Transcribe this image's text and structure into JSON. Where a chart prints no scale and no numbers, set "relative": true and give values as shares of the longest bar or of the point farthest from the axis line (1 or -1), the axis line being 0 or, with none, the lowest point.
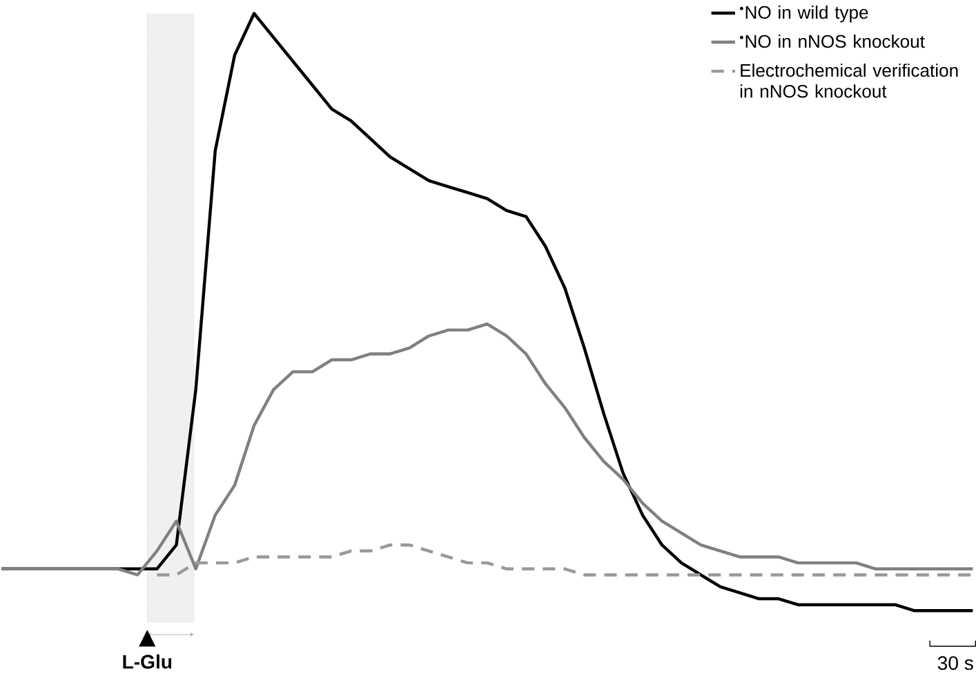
{
  "chart_data": {
    "type": "line",
    "relative": true,
    "legend": "top right",
    "marker": "none",
    "categories": [
      null,
      null,
      null,
      null,
      null,
      null,
      null,
      null,
      null,
      null,
      null,
      null,
      null,
      null,
      null,
      null,
      null,
      null,
      null,
      null,
      null,
      null,
      null,
      null,
      null,
      null,
      null,
      null,
      null,
      null,
      null,
      null,
      null,
      null,
      null,
      null,
      null,
      null,
      null,
      null,
      null,
      null,
      null,
      null,
      null,
      null,
      null,
      null,
      null,
      null,
      null
    ],
    "series": [
      {
        "name": "$^{•}$NO in wild type",
        "color": "#000000",
        "line_style": "solid",
        "values": [
          0.07,
          0.07,
          0.07,
          0.07,
          0.07,
          0.07,
          0.07,
          0.07,
          0.07,
          0.11,
          0.37,
          0.77,
          0.93,
          1,
          0.96,
          0.92,
          0.88,
          0.84,
          0.82,
          0.79,
          0.76,
          0.74,
          0.72,
          0.71,
          0.7,
          0.69,
          0.67,
          0.66,
          0.61,
          0.54,
          0.44,
          0.33,
          0.23,
          0.16,
          0.11,
          0.08,
          0.06,
          0.04,
          0.03,
          0.02,
          0.02,
          0.01,
          0.01,
          0.01,
          0.01,
          0.01,
          0.01,
          0,
          0,
          0,
          0
        ]
      },
      {
        "name": "$^{•}$NO in nNOS knockout",
        "color": "#808080",
        "line_style": "solid",
        "values": [
          0.07,
          0.07,
          0.07,
          0.07,
          0.07,
          0.07,
          0.07,
          0.06,
          0.1,
          0.15,
          0.07,
          0.16,
          0.21,
          0.31,
          0.37,
          0.4,
          0.4,
          0.42,
          0.42,
          0.43,
          0.43,
          0.44,
          0.46,
          0.47,
          0.47,
          0.48,
          0.46,
          0.43,
          0.38,
          0.34,
          0.29,
          0.25,
          0.22,
          0.18,
          0.15,
          0.13,
          0.11,
          0.1,
          0.09,
          0.09,
          0.09,
          0.08,
          0.08,
          0.08,
          0.08,
          0.07,
          0.07,
          0.07,
          0.07,
          0.07,
          0.07
        ]
      },
      {
        "name": "Electrochemical verification in nNOS knockout",
        "color": "#999999",
        "line_style": "dashed",
        "values": [
          null,
          null,
          null,
          null,
          null,
          null,
          null,
          null,
          0.06,
          0.06,
          0.08,
          0.08,
          0.08,
          0.09,
          0.09,
          0.09,
          0.09,
          0.09,
          0.1,
          0.1,
          0.11,
          0.11,
          0.1,
          0.09,
          0.08,
          0.08,
          0.07,
          0.07,
          0.07,
          0.07,
          0.06,
          0.06,
          0.06,
          0.06,
          0.06,
          0.06,
          0.06,
          0.06,
          0.06,
          0.06,
          0.06,
          0.06,
          0.06,
          0.06,
          0.06,
          0.06,
          0.06,
          0.06,
          0.06,
          0.06,
          0.06
        ]
      }
    ],
    "annotations": [
      "L-Glu",
      "30 s"
    ]
  }
}
